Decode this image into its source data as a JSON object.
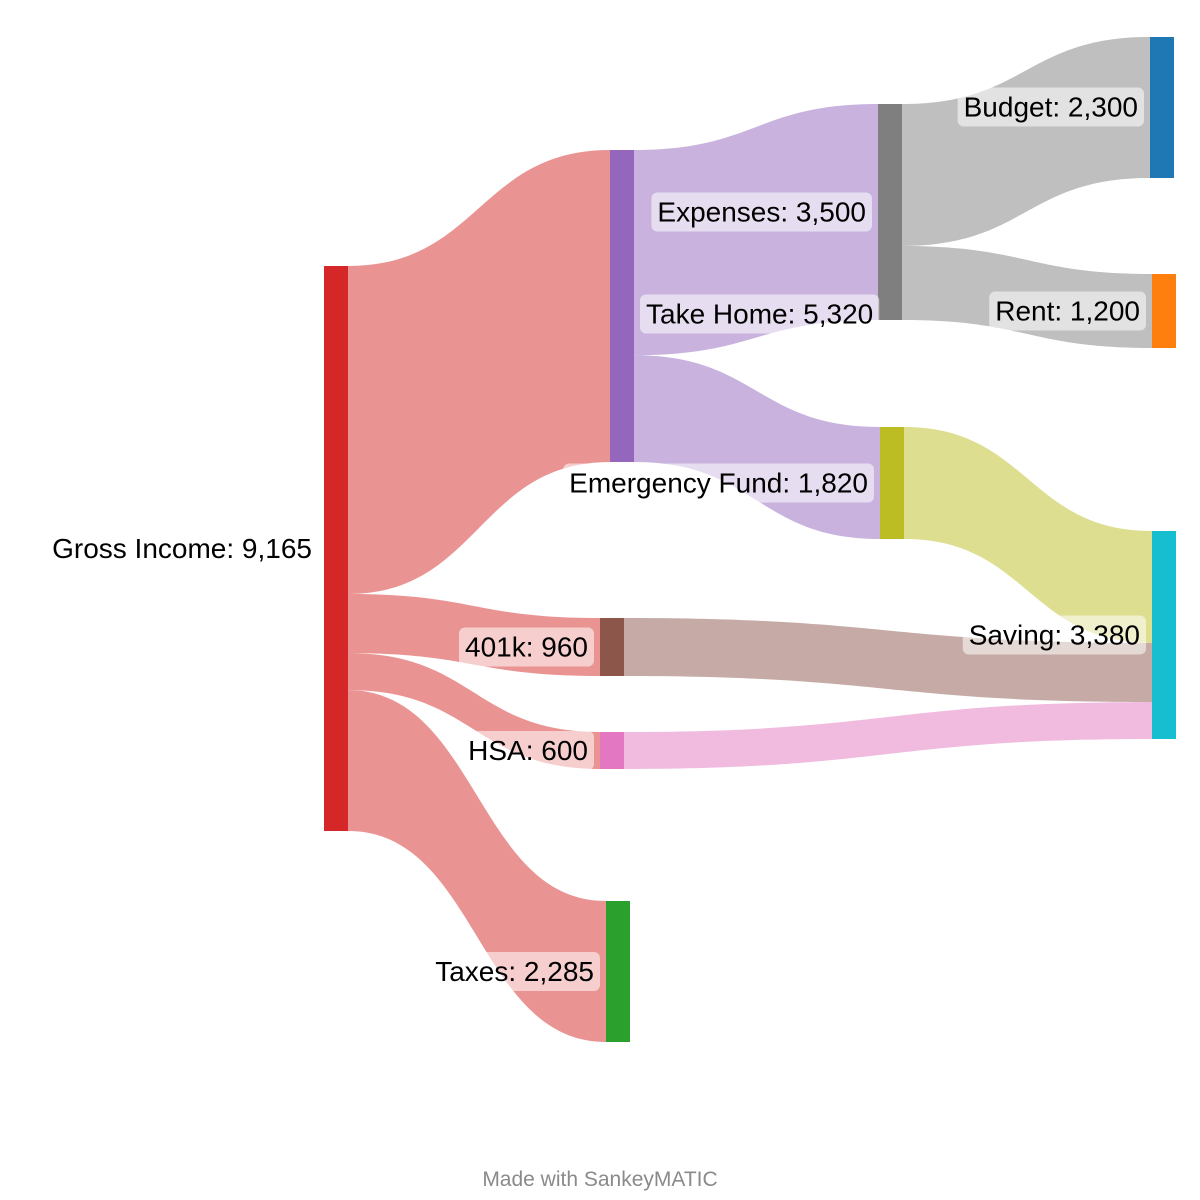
{
  "chart_data": {
    "type": "sankey",
    "nodes": [
      {
        "id": "gross",
        "label": "Gross Income: 9,165",
        "name": "Gross Income",
        "value": 9165,
        "color": "#d62728"
      },
      {
        "id": "takehome",
        "label": "Take Home: 5,320",
        "name": "Take Home",
        "value": 5320,
        "color": "#9467bd"
      },
      {
        "id": "k401",
        "label": "401k: 960",
        "name": "401k",
        "value": 960,
        "color": "#8c564b"
      },
      {
        "id": "hsa",
        "label": "HSA: 600",
        "name": "HSA",
        "value": 600,
        "color": "#e377c2"
      },
      {
        "id": "taxes",
        "label": "Taxes: 2,285",
        "name": "Taxes",
        "value": 2285,
        "color": "#2ca02c"
      },
      {
        "id": "expenses",
        "label": "Expenses: 3,500",
        "name": "Expenses",
        "value": 3500,
        "color": "#7f7f7f"
      },
      {
        "id": "emergency",
        "label": "Emergency Fund: 1,820",
        "name": "Emergency Fund",
        "value": 1820,
        "color": "#bcbd22"
      },
      {
        "id": "budget",
        "label": "Budget: 2,300",
        "name": "Budget",
        "value": 2300,
        "color": "#1f77b4"
      },
      {
        "id": "rent",
        "label": "Rent: 1,200",
        "name": "Rent",
        "value": 1200,
        "color": "#ff7f0e"
      },
      {
        "id": "saving",
        "label": "Saving: 3,380",
        "name": "Saving",
        "value": 3380,
        "color": "#17becf"
      }
    ],
    "flows": [
      {
        "source": "gross",
        "target": "takehome",
        "value": 5320
      },
      {
        "source": "gross",
        "target": "k401",
        "value": 960
      },
      {
        "source": "gross",
        "target": "hsa",
        "value": 600
      },
      {
        "source": "gross",
        "target": "taxes",
        "value": 2285
      },
      {
        "source": "takehome",
        "target": "expenses",
        "value": 3500
      },
      {
        "source": "takehome",
        "target": "emergency",
        "value": 1820
      },
      {
        "source": "expenses",
        "target": "budget",
        "value": 2300
      },
      {
        "source": "expenses",
        "target": "rent",
        "value": 1200
      },
      {
        "source": "emergency",
        "target": "saving",
        "value": 1820
      },
      {
        "source": "k401",
        "target": "saving",
        "value": 960
      },
      {
        "source": "hsa",
        "target": "saving",
        "value": 600
      }
    ]
  },
  "footer": {
    "credit": "Made with SankeyMATIC"
  }
}
